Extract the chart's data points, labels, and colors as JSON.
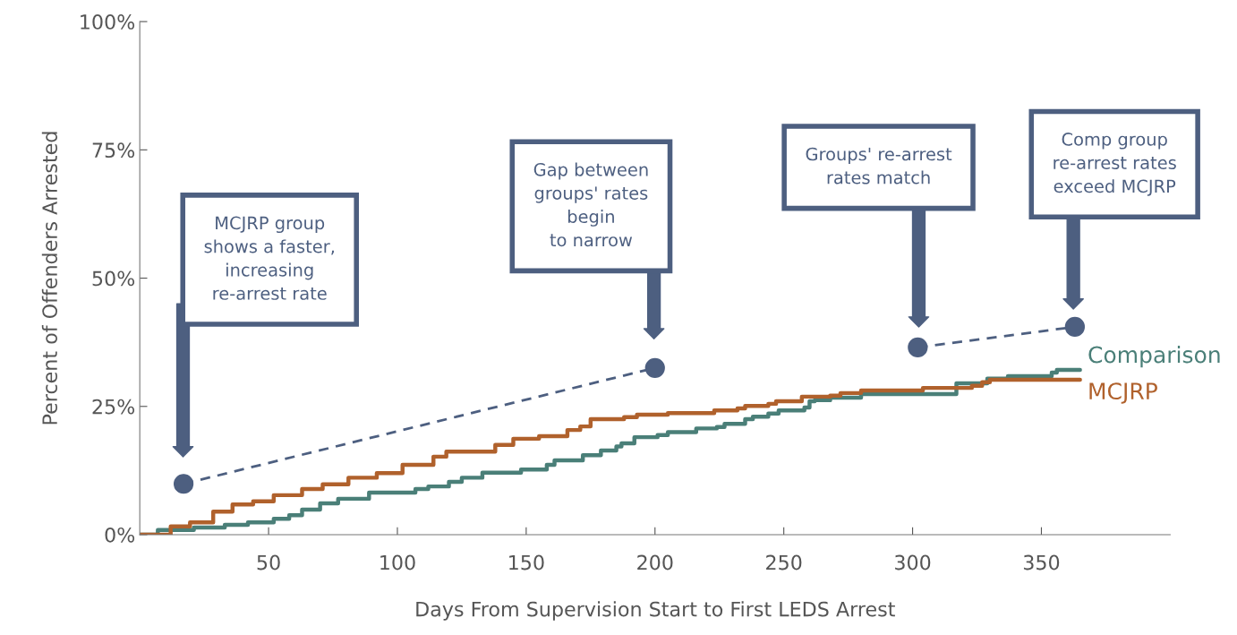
{
  "chart_data": {
    "type": "step",
    "xlabel": "Days From Supervision Start to First LEDS Arrest",
    "ylabel": "Percent of Offenders Arrested",
    "xlim": [
      0,
      400
    ],
    "xticks": [
      50,
      100,
      150,
      200,
      250,
      300,
      350
    ],
    "ylim": [
      0,
      100
    ],
    "yticks": [
      {
        "value": 0,
        "label": "0%"
      },
      {
        "value": 25,
        "label": "25%"
      },
      {
        "value": 50,
        "label": "50%"
      },
      {
        "value": 75,
        "label": "75%"
      },
      {
        "value": 100,
        "label": "100%"
      }
    ],
    "grid": false,
    "legend": false,
    "series": [
      {
        "name": "Comparison",
        "color": "#4a7f78",
        "x": [
          0,
          7,
          21,
          33,
          42,
          52,
          58,
          63,
          70,
          77,
          89,
          107,
          112,
          120,
          125,
          133,
          148,
          158,
          161,
          172,
          179,
          185,
          187,
          192,
          201,
          205,
          216,
          224,
          227,
          235,
          238,
          244,
          248,
          258,
          260,
          262,
          268,
          280,
          317,
          329,
          337,
          354,
          356,
          365
        ],
        "values": [
          0,
          0.9,
          1.4,
          1.9,
          2.4,
          3.1,
          3.8,
          4.9,
          6.1,
          7.0,
          8.2,
          8.9,
          9.4,
          10.3,
          11.1,
          12.1,
          12.7,
          13.6,
          14.5,
          15.5,
          16.4,
          17.2,
          17.8,
          19.0,
          19.4,
          20.0,
          20.7,
          21.0,
          21.6,
          22.5,
          23.0,
          23.6,
          24.2,
          24.8,
          26.0,
          26.2,
          26.7,
          27.4,
          29.5,
          30.4,
          30.9,
          31.6,
          32.1,
          32.1
        ]
      },
      {
        "name": "MCJRP",
        "color": "#b0612c",
        "x": [
          0,
          12,
          19.5,
          28.5,
          36,
          44,
          52,
          63,
          71,
          81,
          92,
          102,
          114,
          119,
          138,
          145,
          155,
          166,
          171,
          175,
          188,
          193,
          205,
          223,
          232,
          235,
          244,
          247,
          257,
          268,
          272,
          280,
          304,
          323,
          327,
          330,
          365
        ],
        "values": [
          0,
          1.6,
          2.4,
          4.5,
          5.9,
          6.5,
          7.7,
          8.9,
          9.8,
          11.1,
          12.0,
          13.6,
          15.2,
          16.2,
          17.5,
          18.7,
          19.2,
          20.4,
          21.1,
          22.5,
          22.9,
          23.4,
          23.7,
          24.2,
          24.6,
          25.1,
          25.5,
          26.0,
          26.9,
          27.1,
          27.6,
          28.1,
          28.6,
          29.0,
          29.7,
          30.2,
          30.2
        ]
      },
      {
        "type": "line",
        "color": "#4d5f80",
        "line_style": "dashed",
        "marker": "circle",
        "x": [
          17,
          200
        ],
        "values": [
          9.9,
          32.5
        ]
      },
      {
        "type": "line",
        "color": "#4d5f80",
        "line_style": "dashed",
        "marker": "circle",
        "x": [
          302,
          363
        ],
        "values": [
          36.5,
          40.5
        ]
      }
    ],
    "annotations": [
      "MCJRP group\nshows a faster,\nincreasing\nre-arrest rate",
      "Gap between\ngroups' rates\nbegin\nto narrow",
      "Groups' re-arrest\nrates match",
      "Comp group\nre-arrest rates\nexceed MCJRP"
    ]
  }
}
